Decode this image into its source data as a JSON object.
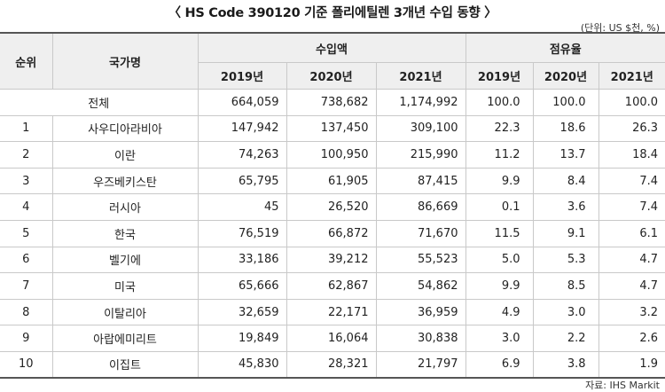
{
  "title": "〈 HS Code 390120 기준 폴리에틸렌 3개년 수입 동향 〉",
  "unit": "(단위: US $천, %)",
  "headers": {
    "rank": "순위",
    "country": "국가명",
    "import_amount": "수입액",
    "share": "점유율",
    "years": [
      "2019년",
      "2020년",
      "2021년"
    ]
  },
  "total": {
    "label": "전체",
    "imports": [
      "664,059",
      "738,682",
      "1,174,992"
    ],
    "shares": [
      "100.0",
      "100.0",
      "100.0"
    ]
  },
  "rows": [
    {
      "rank": "1",
      "country": "사우디아라비아",
      "imports": [
        "147,942",
        "137,450",
        "309,100"
      ],
      "shares": [
        "22.3",
        "18.6",
        "26.3"
      ]
    },
    {
      "rank": "2",
      "country": "이란",
      "imports": [
        "74,263",
        "100,950",
        "215,990"
      ],
      "shares": [
        "11.2",
        "13.7",
        "18.4"
      ]
    },
    {
      "rank": "3",
      "country": "우즈베키스탄",
      "imports": [
        "65,795",
        "61,905",
        "87,415"
      ],
      "shares": [
        "9.9",
        "8.4",
        "7.4"
      ]
    },
    {
      "rank": "4",
      "country": "러시아",
      "imports": [
        "45",
        "26,520",
        "86,669"
      ],
      "shares": [
        "0.1",
        "3.6",
        "7.4"
      ]
    },
    {
      "rank": "5",
      "country": "한국",
      "imports": [
        "76,519",
        "66,872",
        "71,670"
      ],
      "shares": [
        "11.5",
        "9.1",
        "6.1"
      ]
    },
    {
      "rank": "6",
      "country": "벨기에",
      "imports": [
        "33,186",
        "39,212",
        "55,523"
      ],
      "shares": [
        "5.0",
        "5.3",
        "4.7"
      ]
    },
    {
      "rank": "7",
      "country": "미국",
      "imports": [
        "65,666",
        "62,867",
        "54,862"
      ],
      "shares": [
        "9.9",
        "8.5",
        "4.7"
      ]
    },
    {
      "rank": "8",
      "country": "이탈리아",
      "imports": [
        "32,659",
        "22,171",
        "36,959"
      ],
      "shares": [
        "4.9",
        "3.0",
        "3.2"
      ]
    },
    {
      "rank": "9",
      "country": "아랍에미리트",
      "imports": [
        "19,849",
        "16,064",
        "30,838"
      ],
      "shares": [
        "3.0",
        "2.2",
        "2.6"
      ]
    },
    {
      "rank": "10",
      "country": "이집트",
      "imports": [
        "45,830",
        "28,321",
        "21,797"
      ],
      "shares": [
        "6.9",
        "3.8",
        "1.9"
      ]
    }
  ],
  "source": "자료: IHS Markit"
}
